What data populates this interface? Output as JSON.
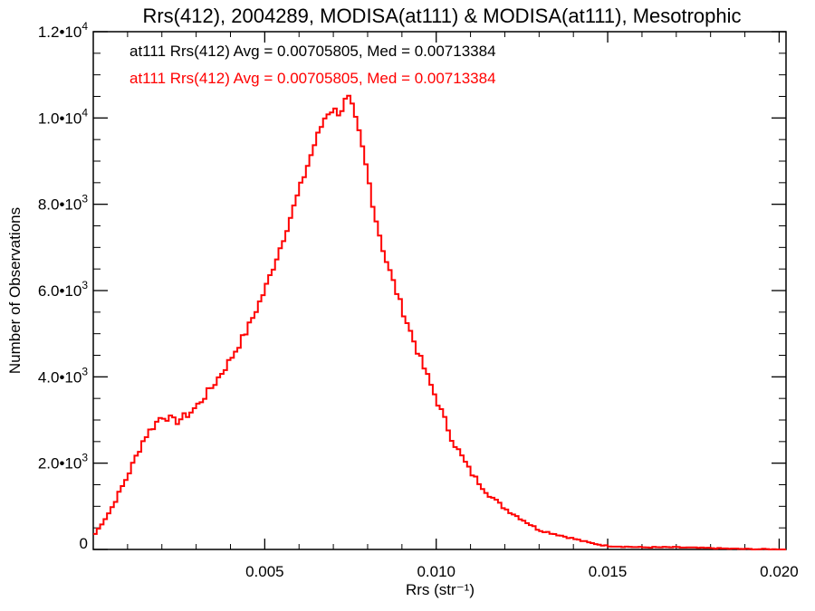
{
  "chart_data": {
    "type": "line",
    "title": "Rrs(412), 2004289, MODISA(at111) & MODISA(at111), Mesotrophic",
    "xlabel": "Rrs (str⁻¹)",
    "ylabel": "Number of Observations",
    "xlim": [
      0.0,
      0.0202
    ],
    "ylim": [
      0,
      12000
    ],
    "x_ticks": [
      0.005,
      0.01,
      0.015,
      0.02
    ],
    "x_tick_labels": [
      "0.005",
      "0.010",
      "0.015",
      "0.020"
    ],
    "y_ticks": [
      0,
      2000,
      4000,
      6000,
      8000,
      10000,
      12000
    ],
    "y_tick_labels": [
      {
        "mant": "0",
        "exp": ""
      },
      {
        "mant": "2.0•1",
        "exp": "3"
      },
      {
        "mant": "4.0•1",
        "exp": "3"
      },
      {
        "mant": "6.0•1",
        "exp": "3"
      },
      {
        "mant": "8.0•1",
        "exp": "3"
      },
      {
        "mant": "1.0•1",
        "exp": "4"
      },
      {
        "mant": "1.2•1",
        "exp": "4"
      }
    ],
    "grid": false,
    "legend_placement": "top-left",
    "annotations": [
      {
        "text": "at111 Rrs(412) Avg = 0.00705805, Med = 0.00713384",
        "color": "#000000"
      },
      {
        "text": "at111 Rrs(412) Avg = 0.00705805, Med = 0.00713384",
        "color": "#ff0000"
      }
    ],
    "series": [
      {
        "color": "#ff0000",
        "style": "step",
        "x": [
          0.0,
          0.0005,
          0.001,
          0.0015,
          0.0018,
          0.002,
          0.0022,
          0.0024,
          0.0026,
          0.0028,
          0.003,
          0.0035,
          0.004,
          0.0045,
          0.005,
          0.0055,
          0.006,
          0.0065,
          0.0068,
          0.007,
          0.0072,
          0.0074,
          0.0075,
          0.0076,
          0.0078,
          0.008,
          0.0082,
          0.0085,
          0.009,
          0.0095,
          0.01,
          0.0105,
          0.011,
          0.0115,
          0.012,
          0.0125,
          0.013,
          0.0135,
          0.014,
          0.0145,
          0.015,
          0.016,
          0.017,
          0.018,
          0.019,
          0.02
        ],
        "y": [
          300,
          900,
          1700,
          2600,
          2900,
          3100,
          3050,
          2950,
          3050,
          3150,
          3300,
          3800,
          4400,
          5100,
          6000,
          7100,
          8300,
          9500,
          10100,
          10200,
          10100,
          10500,
          10400,
          10100,
          9500,
          8700,
          7800,
          6800,
          5600,
          4500,
          3500,
          2500,
          1800,
          1300,
          950,
          700,
          450,
          350,
          250,
          150,
          80,
          50,
          50,
          30,
          10,
          0
        ]
      }
    ]
  }
}
